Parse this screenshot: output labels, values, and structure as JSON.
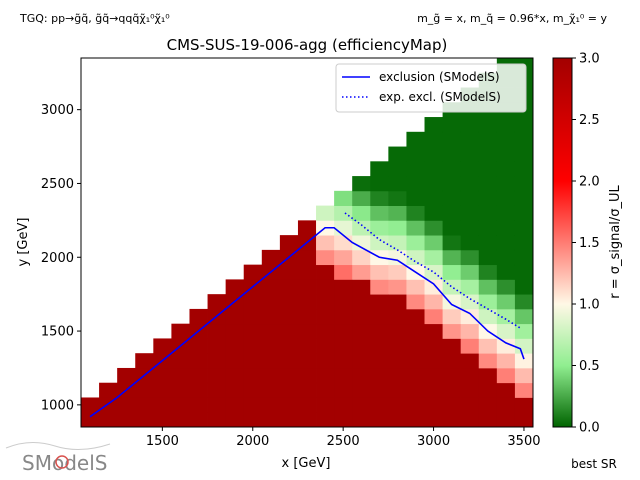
{
  "header": {
    "topology": "TGQ: pp→g̃q̃, g̃q̃→qqq̃χ̃₁⁰χ̃₁⁰",
    "mass_relation": "m_g̃ = x, m_q̃ = 0.96*x, m_χ̃₁⁰ = y"
  },
  "chart_data": {
    "type": "heatmap",
    "title": "CMS-SUS-19-006-agg (efficiencyMap)",
    "xlabel": "x [GeV]",
    "ylabel": "y [GeV]",
    "xlim": [
      1050,
      3550
    ],
    "ylim": [
      850,
      3350
    ],
    "xticks": [
      1500,
      2000,
      2500,
      3000,
      3500
    ],
    "yticks": [
      1000,
      1500,
      2000,
      2500,
      3000
    ],
    "colorbar": {
      "label": "r = σ_signal/σ_UL",
      "range": [
        0.0,
        3.0
      ],
      "ticks": [
        0.0,
        0.5,
        1.0,
        1.5,
        2.0,
        2.5,
        3.0
      ],
      "colors": [
        "#006400",
        "#90ee90",
        "#fff8e6",
        "#ff0000",
        "#a30000"
      ]
    },
    "grid": {
      "x_step": 100,
      "y_step": 100,
      "note_shape": "triangle y <= x - 100"
    },
    "series": [
      {
        "name": "exclusion (SModelS)",
        "style": "solid",
        "color": "#0000ff",
        "x": [
          1100,
          1250,
          1400,
          1600,
          1800,
          2000,
          2200,
          2350,
          2400,
          2450,
          2550,
          2700,
          2800,
          2900,
          3000,
          3100,
          3200,
          3300,
          3400,
          3480,
          3500
        ],
        "y": [
          920,
          1050,
          1200,
          1400,
          1600,
          1800,
          2000,
          2150,
          2200,
          2200,
          2100,
          2000,
          1980,
          1900,
          1820,
          1680,
          1620,
          1500,
          1420,
          1380,
          1310
        ]
      },
      {
        "name": "exp. excl. (SModelS)",
        "style": "dotted",
        "color": "#0000ff",
        "x": [
          2510,
          2600,
          2700,
          2800,
          2900,
          3000,
          3100,
          3200,
          3300,
          3400,
          3480
        ],
        "y": [
          2300,
          2220,
          2120,
          2050,
          1970,
          1900,
          1800,
          1720,
          1650,
          1580,
          1520
        ]
      }
    ],
    "legend": {
      "position": "top-right"
    },
    "footer_label": "best SR"
  },
  "logo": {
    "text": "SModelS"
  }
}
